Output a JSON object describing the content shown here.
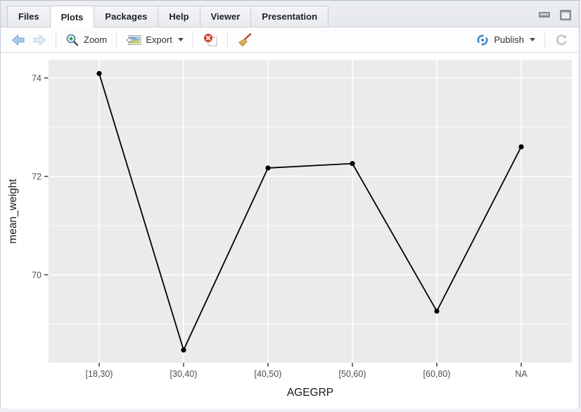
{
  "tabs": {
    "items": [
      {
        "label": "Files",
        "active": false
      },
      {
        "label": "Plots",
        "active": true
      },
      {
        "label": "Packages",
        "active": false
      },
      {
        "label": "Help",
        "active": false
      },
      {
        "label": "Viewer",
        "active": false
      },
      {
        "label": "Presentation",
        "active": false
      }
    ]
  },
  "toolbar": {
    "zoom_label": "Zoom",
    "export_label": "Export",
    "publish_label": "Publish"
  },
  "chart_data": {
    "type": "line",
    "categories": [
      "[18,30)",
      "[30,40)",
      "[40,50)",
      "[50,60)",
      "[60,80)",
      "NA"
    ],
    "values": [
      74.09,
      68.47,
      72.17,
      72.26,
      69.26,
      72.6
    ],
    "title": "",
    "xlabel": "AGEGRP",
    "ylabel": "mean_weight",
    "y_ticks": [
      70,
      72,
      74
    ],
    "y_minor_gridlines": [
      69,
      71,
      73
    ],
    "ylim": [
      68.21,
      74.37
    ],
    "grid": "on",
    "legend_position": "none",
    "panel_bg": "#EBEBEB",
    "grid_color": "#FFFFFF",
    "line_color": "#000000",
    "point_color": "#000000",
    "tick_color": "#333333",
    "tick_label_color": "#4D4D4D",
    "axis_title_color": "#191919"
  }
}
